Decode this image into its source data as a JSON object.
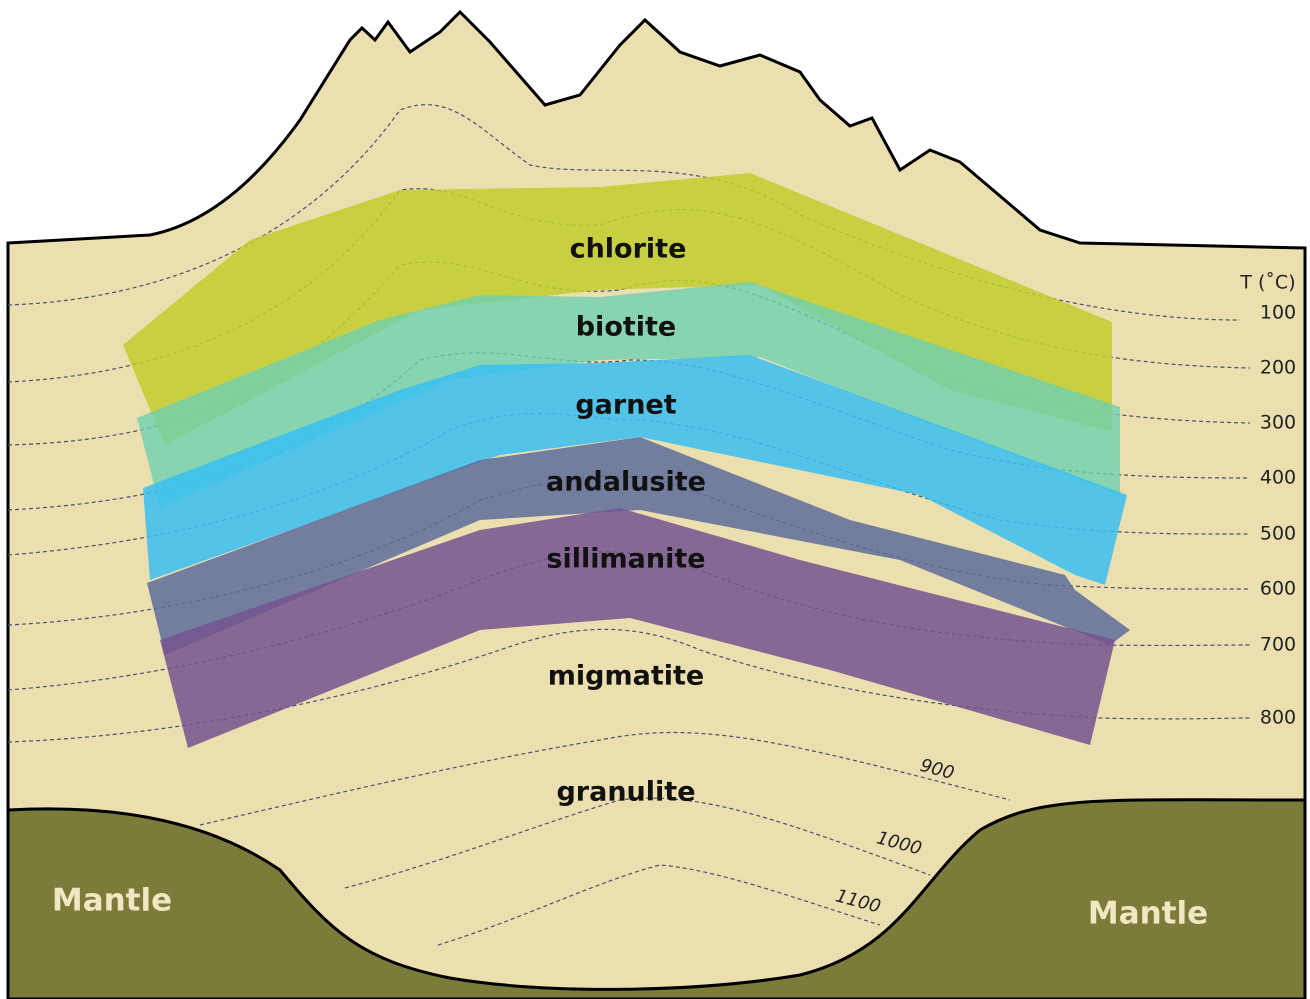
{
  "axis_title": "T (˚C)",
  "zones": [
    "chlorite",
    "biotite",
    "garnet",
    "andalusite",
    "sillimanite",
    "migmatite",
    "granulite"
  ],
  "isotherms": [
    100,
    200,
    300,
    400,
    500,
    600,
    700,
    800
  ],
  "deep_isotherms": [
    900,
    1000,
    1100
  ],
  "mantle_labels": [
    "Mantle",
    "Mantle"
  ]
}
